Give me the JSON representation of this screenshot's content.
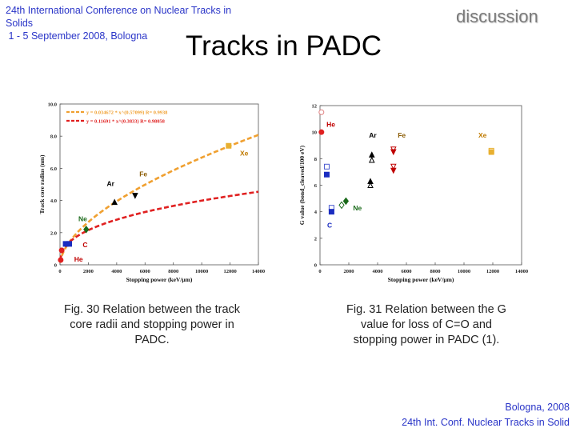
{
  "header": {
    "conference_line1": "24th International Conference on Nuclear Tracks in",
    "conference_line2": "Solids",
    "conference_line3": " 1 - 5 September 2008, Bologna"
  },
  "discussion_label": "discussion",
  "title": "Tracks in PADC",
  "figures": [
    {
      "caption": "Fig. 30 Relation between the track core radii and stopping power in PADC.",
      "caption_lines": [
        "Fig. 30 Relation between the track",
        "core radii and stopping power in",
        "PADC."
      ]
    },
    {
      "caption": "Fig. 31 Relation between the G value for loss of C=O and stopping power in PADC (1).",
      "caption_lines": [
        "Fig. 31 Relation between the G",
        "value for loss of C=O and",
        "stopping power in PADC (1)."
      ]
    }
  ],
  "footer": {
    "line1": "Bologna,  2008",
    "line2": "24th Int. Conf. Nuclear Tracks in Solid"
  },
  "colors": {
    "accent_blue": "#2a35c8",
    "fit_orange": "#f0a030",
    "fit_red": "#e02020",
    "label_orange": "#c07a00",
    "label_red": "#c00000",
    "label_blue": "#1a2cc0",
    "label_green": "#1a6a1a"
  },
  "chart_data": [
    {
      "type": "scatter",
      "title": "",
      "xlabel": "Stopping power (keV/μm)",
      "ylabel": "Track core radius (nm)",
      "xlim": [
        0,
        14000
      ],
      "ylim": [
        0,
        10
      ],
      "xticks": [
        "0",
        "2000",
        "4000",
        "6000",
        "8000",
        "10000",
        "12000",
        "14000"
      ],
      "yticks": [
        "0",
        "2.0",
        "4.0",
        "6.0",
        "8.0",
        "10.0"
      ],
      "legend": [
        {
          "text": "y = 0.034672 * x^(0.57099)  R= 0.9938",
          "color": "#f0a030"
        },
        {
          "text": "y = 0.11691 * x^(0.3833)  R= 0.98058",
          "color": "#e02020"
        }
      ],
      "fits": [
        {
          "name": "orange",
          "a": 0.034672,
          "b": 0.57099
        },
        {
          "name": "red",
          "a": 0.11691,
          "b": 0.3833
        }
      ],
      "ion_labels": [
        {
          "label": "He",
          "x": 1000,
          "y": 0.2,
          "color": "#c00000"
        },
        {
          "label": "C",
          "x": 1600,
          "y": 1.1,
          "color": "#c00000"
        },
        {
          "label": "Ne",
          "x": 1300,
          "y": 2.7,
          "color": "#1a6a1a"
        },
        {
          "label": "Ar",
          "x": 3300,
          "y": 4.9,
          "color": "#000000"
        },
        {
          "label": "Fe",
          "x": 5600,
          "y": 5.5,
          "color": "#8a5a00"
        },
        {
          "label": "Xe",
          "x": 12700,
          "y": 6.8,
          "color": "#c07a00"
        }
      ],
      "points": [
        {
          "x": 50,
          "y": 0.3,
          "shape": "circle",
          "color": "#e02020"
        },
        {
          "x": 120,
          "y": 0.9,
          "shape": "circle",
          "color": "#e02020"
        },
        {
          "x": 400,
          "y": 1.3,
          "shape": "square",
          "color": "#1a2cc0"
        },
        {
          "x": 650,
          "y": 1.3,
          "shape": "square",
          "color": "#1a2cc0"
        },
        {
          "x": 1850,
          "y": 2.2,
          "shape": "diamond",
          "color": "#1a6a1a"
        },
        {
          "x": 3850,
          "y": 3.9,
          "shape": "triangle",
          "color": "#000000"
        },
        {
          "x": 5300,
          "y": 4.3,
          "shape": "triangle-down",
          "color": "#000000"
        },
        {
          "x": 11900,
          "y": 7.4,
          "shape": "square",
          "color": "#e8b030"
        }
      ]
    },
    {
      "type": "scatter",
      "title": "",
      "xlabel": "Stopping power (keV/μm)",
      "ylabel": "G value (bond_cleaved/100 eV)",
      "xlim": [
        0,
        14000
      ],
      "ylim": [
        0,
        12
      ],
      "xticks": [
        "0",
        "2000",
        "4000",
        "6000",
        "8000",
        "10000",
        "12000",
        "14000"
      ],
      "yticks": [
        "0",
        "2",
        "4",
        "6",
        "8",
        "10",
        "12"
      ],
      "ion_labels": [
        {
          "label": "He",
          "x": 450,
          "y": 10.4,
          "color": "#c00000"
        },
        {
          "label": "Ar",
          "x": 3400,
          "y": 9.6,
          "color": "#000000"
        },
        {
          "label": "Fe",
          "x": 5400,
          "y": 9.6,
          "color": "#8a5a00"
        },
        {
          "label": "Xe",
          "x": 11000,
          "y": 9.6,
          "color": "#c07a00"
        },
        {
          "label": "Ne",
          "x": 2300,
          "y": 4.1,
          "color": "#1a6a1a"
        },
        {
          "label": "C",
          "x": 500,
          "y": 2.8,
          "color": "#1a2cc0"
        }
      ],
      "points": [
        {
          "x": 100,
          "y": 11.5,
          "shape": "circle-open",
          "color": "#e08080"
        },
        {
          "x": 100,
          "y": 10.0,
          "shape": "circle",
          "color": "#e02020"
        },
        {
          "x": 470,
          "y": 7.4,
          "shape": "square-open",
          "color": "#4a5ad0"
        },
        {
          "x": 470,
          "y": 6.8,
          "shape": "square",
          "color": "#1a2cc0"
        },
        {
          "x": 800,
          "y": 4.3,
          "shape": "square-open",
          "color": "#4a5ad0"
        },
        {
          "x": 800,
          "y": 4.0,
          "shape": "square",
          "color": "#1a2cc0"
        },
        {
          "x": 1500,
          "y": 4.5,
          "shape": "diamond-open",
          "color": "#1a6a1a"
        },
        {
          "x": 1800,
          "y": 4.8,
          "shape": "diamond",
          "color": "#1a6a1a"
        },
        {
          "x": 3500,
          "y": 6.0,
          "shape": "triangle-open",
          "color": "#000000"
        },
        {
          "x": 3500,
          "y": 6.3,
          "shape": "triangle",
          "color": "#000000"
        },
        {
          "x": 3600,
          "y": 7.9,
          "shape": "triangle-open",
          "color": "#000000"
        },
        {
          "x": 3600,
          "y": 8.3,
          "shape": "triangle",
          "color": "#000000"
        },
        {
          "x": 5100,
          "y": 7.4,
          "shape": "triangle-down-open",
          "color": "#c00000"
        },
        {
          "x": 5100,
          "y": 7.1,
          "shape": "triangle-down",
          "color": "#c00000"
        },
        {
          "x": 5100,
          "y": 8.7,
          "shape": "triangle-down-open",
          "color": "#c00000"
        },
        {
          "x": 5100,
          "y": 8.5,
          "shape": "triangle-down",
          "color": "#c00000"
        },
        {
          "x": 11900,
          "y": 8.6,
          "shape": "square-open",
          "color": "#e8b030"
        },
        {
          "x": 11900,
          "y": 8.5,
          "shape": "square",
          "color": "#e8b030"
        }
      ]
    }
  ]
}
